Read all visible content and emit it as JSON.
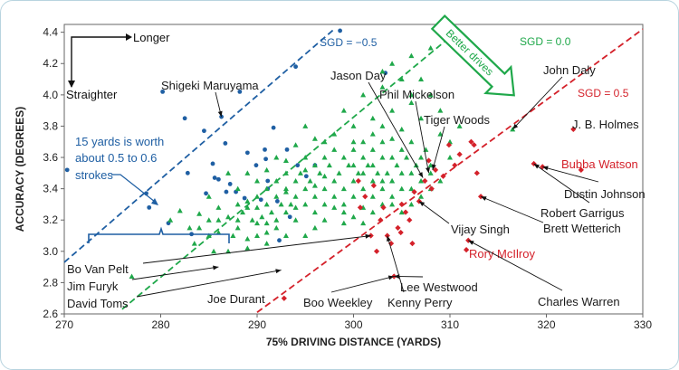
{
  "chart_data": {
    "type": "scatter",
    "xlabel": "75% DRIVING DISTANCE (YARDS)",
    "ylabel": "ACCURACY (DEGREES)",
    "xlim": [
      270,
      330
    ],
    "ylim": [
      2.6,
      4.45
    ],
    "x_ticks": [
      "270",
      "280",
      "290",
      "300",
      "310",
      "320",
      "330"
    ],
    "y_ticks": [
      "2.6",
      "2.8",
      "3.0",
      "3.2",
      "3.4",
      "3.6",
      "3.8",
      "4.0",
      "4.2",
      "4.4"
    ],
    "colors": {
      "blue": "#1f5fa3",
      "green": "#1fa84a",
      "red": "#d4212a",
      "text": "#1a1a1a"
    },
    "sgd_lines": [
      {
        "label": "SGD = −0.5",
        "color": "#1f5fa3",
        "x": [
          270,
          298
        ],
        "y": [
          2.93,
          4.42
        ]
      },
      {
        "label": "SGD = 0.0",
        "color": "#1fa84a",
        "x": [
          276,
          311
        ],
        "y": [
          2.63,
          4.42
        ]
      },
      {
        "label": "SGD = 0.5",
        "color": "#d4212a",
        "x": [
          290,
          330
        ],
        "y": [
          2.61,
          4.42
        ]
      }
    ],
    "blue_points": [
      [
        270.3,
        3.52
      ],
      [
        278.5,
        3.37
      ],
      [
        278.8,
        3.28
      ],
      [
        280.2,
        4.02
      ],
      [
        280.8,
        3.18
      ],
      [
        282.5,
        3.85
      ],
      [
        283.2,
        3.11
      ],
      [
        284.5,
        3.77
      ],
      [
        284.7,
        3.37
      ],
      [
        285.4,
        3.56
      ],
      [
        285.6,
        3.47
      ],
      [
        286,
        3.46
      ],
      [
        286.3,
        3.86
      ],
      [
        286.7,
        3.69
      ],
      [
        286.8,
        3.38
      ],
      [
        287.8,
        3.38
      ],
      [
        288.2,
        4.02
      ],
      [
        288.7,
        3.34
      ],
      [
        289,
        3.63
      ],
      [
        289.9,
        3.55
      ],
      [
        290.8,
        3.65
      ],
      [
        290.9,
        3.59
      ],
      [
        291.1,
        3.45
      ],
      [
        291.1,
        3.4
      ],
      [
        291.7,
        3.79
      ],
      [
        292.1,
        3.32
      ],
      [
        292.3,
        3.07
      ],
      [
        293.4,
        3.22
      ],
      [
        294.0,
        4.18
      ],
      [
        294.2,
        3.55
      ],
      [
        295.1,
        3.48
      ],
      [
        296.0,
        3.55
      ],
      [
        298.6,
        4.41
      ],
      [
        303.3,
        4.14
      ],
      [
        287.2,
        3.43
      ],
      [
        293.1,
        3.65
      ],
      [
        290.4,
        3.33
      ],
      [
        282.8,
        3.5
      ]
    ],
    "green_points": [
      [
        277,
        2.84
      ],
      [
        281,
        3.2
      ],
      [
        282,
        3.26
      ],
      [
        283,
        3.15
      ],
      [
        283.5,
        3.05
      ],
      [
        284,
        3.24
      ],
      [
        285,
        3.1
      ],
      [
        285,
        3.2
      ],
      [
        285.5,
        3.0
      ],
      [
        286,
        3.28
      ],
      [
        286,
        3.12
      ],
      [
        287,
        3.0
      ],
      [
        287,
        3.22
      ],
      [
        287.5,
        3.1
      ],
      [
        288,
        3.3
      ],
      [
        288,
        3.15
      ],
      [
        288.5,
        3.25
      ],
      [
        289,
        3.08
      ],
      [
        289,
        3.32
      ],
      [
        289.5,
        3.2
      ],
      [
        290,
        3.28
      ],
      [
        290,
        3.1
      ],
      [
        290,
        3.35
      ],
      [
        290.5,
        3.22
      ],
      [
        291,
        3.3
      ],
      [
        291,
        3.18
      ],
      [
        291,
        3.4
      ],
      [
        291.5,
        3.25
      ],
      [
        292,
        3.35
      ],
      [
        292,
        3.2
      ],
      [
        292,
        3.45
      ],
      [
        292.5,
        3.3
      ],
      [
        293,
        3.4
      ],
      [
        293,
        3.25
      ],
      [
        293,
        3.5
      ],
      [
        293.5,
        3.3
      ],
      [
        294,
        3.45
      ],
      [
        294,
        3.35
      ],
      [
        294,
        3.2
      ],
      [
        294.5,
        3.5
      ],
      [
        295,
        3.4
      ],
      [
        295,
        3.3
      ],
      [
        295,
        3.6
      ],
      [
        295.5,
        3.45
      ],
      [
        296,
        3.55
      ],
      [
        296,
        3.35
      ],
      [
        296,
        3.25
      ],
      [
        296.5,
        3.5
      ],
      [
        297,
        3.6
      ],
      [
        297,
        3.4
      ],
      [
        297,
        3.3
      ],
      [
        297.5,
        3.55
      ],
      [
        298,
        3.45
      ],
      [
        298,
        3.35
      ],
      [
        298,
        3.65
      ],
      [
        298.5,
        3.5
      ],
      [
        299,
        3.6
      ],
      [
        299,
        3.4
      ],
      [
        299,
        3.3
      ],
      [
        299.5,
        3.55
      ],
      [
        300,
        3.45
      ],
      [
        300,
        3.7
      ],
      [
        300,
        3.35
      ],
      [
        300.5,
        3.5
      ],
      [
        301,
        3.6
      ],
      [
        301,
        3.4
      ],
      [
        301,
        3.28
      ],
      [
        301.5,
        3.55
      ],
      [
        302,
        3.45
      ],
      [
        302,
        3.65
      ],
      [
        302,
        3.35
      ],
      [
        302.5,
        3.5
      ],
      [
        303,
        3.6
      ],
      [
        303,
        3.4
      ],
      [
        303,
        3.7
      ],
      [
        303.5,
        3.5
      ],
      [
        304,
        3.45
      ],
      [
        304,
        3.6
      ],
      [
        304,
        3.35
      ],
      [
        304.5,
        3.55
      ],
      [
        305,
        3.5
      ],
      [
        305,
        3.65
      ],
      [
        305,
        3.4
      ],
      [
        305.5,
        3.6
      ],
      [
        306,
        3.5
      ],
      [
        306,
        3.7
      ],
      [
        306.5,
        3.55
      ],
      [
        307,
        3.6
      ],
      [
        307,
        3.45
      ],
      [
        307.5,
        3.65
      ],
      [
        308,
        3.5
      ],
      [
        308,
        3.55
      ],
      [
        309,
        3.45
      ],
      [
        296,
        3.15
      ],
      [
        295,
        3.1
      ],
      [
        293,
        3.1
      ],
      [
        291,
        3.05
      ],
      [
        289,
        3.02
      ],
      [
        297,
        3.2
      ],
      [
        299,
        3.18
      ],
      [
        300,
        3.22
      ],
      [
        302,
        3.25
      ],
      [
        301,
        3.18
      ],
      [
        303,
        3.3
      ],
      [
        298,
        3.75
      ],
      [
        300,
        3.8
      ],
      [
        302,
        3.85
      ],
      [
        304,
        3.9
      ],
      [
        305,
        3.78
      ],
      [
        297,
        3.7
      ],
      [
        296,
        3.72
      ],
      [
        294,
        3.68
      ],
      [
        295,
        3.8
      ],
      [
        299,
        3.9
      ],
      [
        301,
        4.0
      ],
      [
        303,
        4.05
      ],
      [
        306,
        3.95
      ],
      [
        307,
        3.85
      ],
      [
        308,
        4.0
      ],
      [
        305,
        4.1
      ],
      [
        309,
        3.75
      ],
      [
        304,
        3.45
      ],
      [
        306,
        3.3
      ],
      [
        307,
        3.35
      ],
      [
        308,
        3.4
      ],
      [
        288,
        3.4
      ],
      [
        287,
        3.5
      ],
      [
        286,
        3.2
      ],
      [
        285,
        3.35
      ],
      [
        284,
        3.15
      ],
      [
        290,
        3.45
      ],
      [
        291,
        3.52
      ],
      [
        292,
        3.6
      ],
      [
        293,
        3.58
      ],
      [
        289,
        3.5
      ],
      [
        306,
        4.25
      ],
      [
        304,
        4.2
      ],
      [
        303,
        4.15
      ],
      [
        308,
        4.3
      ],
      [
        310,
        3.6
      ],
      [
        300,
        3.55
      ],
      [
        301,
        3.5
      ],
      [
        302,
        3.55
      ],
      [
        303,
        3.45
      ],
      [
        304,
        3.3
      ],
      [
        305,
        3.25
      ],
      [
        306,
        3.4
      ],
      [
        299,
        3.25
      ],
      [
        298,
        3.28
      ],
      [
        297,
        3.48
      ],
      [
        296,
        3.42
      ],
      [
        295,
        3.52
      ],
      [
        294,
        3.28
      ],
      [
        293,
        3.38
      ],
      [
        292,
        3.15
      ],
      [
        291,
        3.12
      ],
      [
        290,
        3.18
      ],
      [
        289,
        3.28
      ],
      [
        288,
        3.2
      ],
      [
        300,
        3.65
      ],
      [
        301,
        3.7
      ],
      [
        302,
        3.75
      ],
      [
        303,
        3.8
      ],
      [
        304,
        3.72
      ],
      [
        310,
        3.7
      ],
      [
        311,
        3.8
      ],
      [
        309,
        3.9
      ],
      [
        307,
        4.1
      ],
      [
        306,
        4.0
      ],
      [
        316.5,
        3.78
      ]
    ],
    "red_points": [
      [
        292.8,
        2.7
      ],
      [
        300.7,
        3.28
      ],
      [
        301.2,
        3.35
      ],
      [
        301.8,
        3.1
      ],
      [
        302.1,
        3.42
      ],
      [
        302.4,
        3.0
      ],
      [
        302.8,
        3.2
      ],
      [
        303.1,
        3.28
      ],
      [
        303.5,
        3.1
      ],
      [
        303.9,
        3.05
      ],
      [
        304.2,
        2.84
      ],
      [
        304.6,
        3.15
      ],
      [
        305,
        3.3
      ],
      [
        305.4,
        3.25
      ],
      [
        305.8,
        3.2
      ],
      [
        306.3,
        3.38
      ],
      [
        306.8,
        3.32
      ],
      [
        307.4,
        3.45
      ],
      [
        307.8,
        3.58
      ],
      [
        308.1,
        3.4
      ],
      [
        308.5,
        3.52
      ],
      [
        309.3,
        3.48
      ],
      [
        310.5,
        3.55
      ],
      [
        311,
        3.62
      ],
      [
        311.7,
        3.01
      ],
      [
        311.9,
        3.07
      ],
      [
        312.5,
        3.68
      ],
      [
        313.2,
        3.35
      ],
      [
        318.7,
        3.56
      ],
      [
        319.6,
        3.54
      ],
      [
        322.8,
        3.78
      ],
      [
        323.6,
        3.52
      ],
      [
        300.5,
        3.45
      ],
      [
        306.1,
        3.05
      ],
      [
        309.9,
        3.68
      ],
      [
        312.2,
        3.7
      ],
      [
        312.8,
        3.5
      ],
      [
        304.9,
        3.12
      ]
    ],
    "annotations": [
      {
        "label": "Jason Day",
        "color": "#1a1a1a",
        "px": [
          364,
          83
        ],
        "pt": [
          307.2,
          3.47
        ],
        "from": [
          406,
          90
        ]
      },
      {
        "label": "Phil Mickelson",
        "color": "#1a1a1a",
        "px": [
          418,
          104
        ],
        "pt": [
          307.8,
          3.5
        ],
        "from": [
          458,
          111
        ]
      },
      {
        "label": "Tiger Woods",
        "color": "#1a1a1a",
        "px": [
          467,
          132
        ],
        "pt": [
          308.2,
          3.52
        ],
        "from": [
          490,
          139
        ]
      },
      {
        "label": "John Daly",
        "color": "#1a1a1a",
        "px": [
          599,
          77
        ],
        "pt": [
          316.5,
          3.78
        ],
        "from": [
          620,
          84
        ]
      },
      {
        "label": "J. B. Holmes",
        "color": "#1a1a1a",
        "px": [
          631,
          137
        ],
        "pt": [
          322.8,
          3.78
        ],
        "from": [
          " ",
          0
        ]
      },
      {
        "label": "Bubba Watson",
        "color": "#d4212a",
        "px": [
          619,
          181
        ],
        "pt": [
          323.6,
          3.52
        ],
        "from": [
          " ",
          0
        ]
      },
      {
        "label": "Dustin Johnson",
        "color": "#1a1a1a",
        "px": [
          622,
          214
        ],
        "pt": [
          319.6,
          3.54
        ],
        "from": [
          660,
          200
        ]
      },
      {
        "label": "Robert Garrigus",
        "color": "#1a1a1a",
        "px": [
          596,
          235
        ],
        "pt": [
          318.7,
          3.56
        ],
        "from": [
          650,
          223
        ]
      },
      {
        "label": "Brett Wetterich",
        "color": "#1a1a1a",
        "px": [
          599,
          252
        ],
        "pt": [
          313.2,
          3.35
        ],
        "from": [
          599,
          245
        ]
      },
      {
        "label": "Vijay Singh",
        "color": "#1a1a1a",
        "px": [
          497,
          253
        ],
        "pt": [
          306.8,
          3.32
        ],
        "from": [
          495,
          246
        ]
      },
      {
        "label": "Rory McIlroy",
        "color": "#d4212a",
        "px": [
          517,
          280
        ],
        "pt": [
          311.7,
          3.01
        ],
        "from": [
          " ",
          0
        ]
      },
      {
        "label": "Charles Warren",
        "color": "#1a1a1a",
        "px": [
          593,
          333
        ],
        "pt": [
          311.9,
          3.07
        ],
        "from": [
          620,
          320
        ]
      },
      {
        "label": "Lee Westwood",
        "color": "#1a1a1a",
        "px": [
          441,
          317
        ],
        "pt": [
          304.2,
          2.84
        ],
        "from": [
          466,
          305
        ]
      },
      {
        "label": "Kenny Perry",
        "color": "#1a1a1a",
        "px": [
          427,
          334
        ],
        "pt": [
          303.5,
          3.1
        ],
        "from": [
          445,
          322
        ]
      },
      {
        "label": "Boo Weekley",
        "color": "#1a1a1a",
        "px": [
          334,
          334
        ],
        "pt": [
          304.2,
          2.84
        ],
        "from": [
          365,
          322
        ]
      },
      {
        "label": "Joe Durant",
        "color": "#1a1a1a",
        "px": [
          228,
          330
        ],
        "pt": [
          292.8,
          2.7
        ],
        "from": [
          " ",
          0
        ]
      },
      {
        "label": "Shigeki Maruyama",
        "color": "#1a1a1a",
        "px": [
          177,
          94
        ],
        "pt": [
          286.3,
          3.86
        ],
        "from": [
          237,
          101
        ]
      },
      {
        "label": "Bo Van Pelt",
        "color": "#1a1a1a",
        "px": [
          73,
          297
        ],
        "pt": [
          301.8,
          3.1
        ],
        "from": [
          157,
          290
        ]
      },
      {
        "label": "Jim Furyk",
        "color": "#1a1a1a",
        "px": [
          73,
          316
        ],
        "pt": [
          286,
          2.9
        ],
        "from": [
          145,
          308
        ]
      },
      {
        "label": "David Toms",
        "color": "#1a1a1a",
        "px": [
          73,
          335
        ],
        "pt": [
          292.5,
          2.88
        ],
        "from": [
          150,
          327
        ]
      }
    ],
    "legend_text": {
      "longer": "Longer",
      "straighter": "Straighter",
      "better_drives": "Better drives",
      "yards_note": [
        "15 yards is worth",
        "about 0.5 to 0.6",
        "strokes"
      ]
    }
  }
}
